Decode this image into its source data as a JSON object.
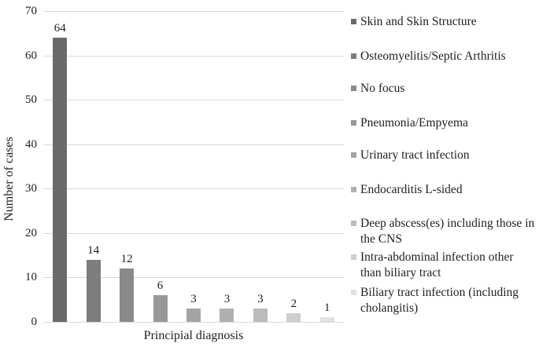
{
  "chart_data": {
    "type": "bar",
    "title": "",
    "xlabel": "Principial diagnosis",
    "ylabel": "Number of cases",
    "ylim": [
      0,
      70
    ],
    "yticks": [
      0,
      10,
      20,
      30,
      40,
      50,
      60,
      70
    ],
    "grid": true,
    "legend_position": "right",
    "categories": [
      "Skin and Skin Structure",
      "Osteomyelitis/Septic Arthritis",
      "No focus",
      "Pneumonia/Empyema",
      "Urinary tract infection",
      "Endocarditis L-sided",
      "Deep abscess(es) including those in the CNS",
      "Intra-abdominal infection other than biliary tract",
      "Biliary tract infection (including cholangitis)"
    ],
    "values": [
      64,
      14,
      12,
      6,
      3,
      3,
      3,
      2,
      1
    ],
    "bar_colors": [
      "#6a6a6a",
      "#7d7d7d",
      "#8a8a8a",
      "#989898",
      "#a4a4a4",
      "#b0b0b0",
      "#bbbbbb",
      "#cecece",
      "#e1e1e1"
    ],
    "gridline_color": "#d9d9d9",
    "text_color": "#1f1f1f"
  }
}
